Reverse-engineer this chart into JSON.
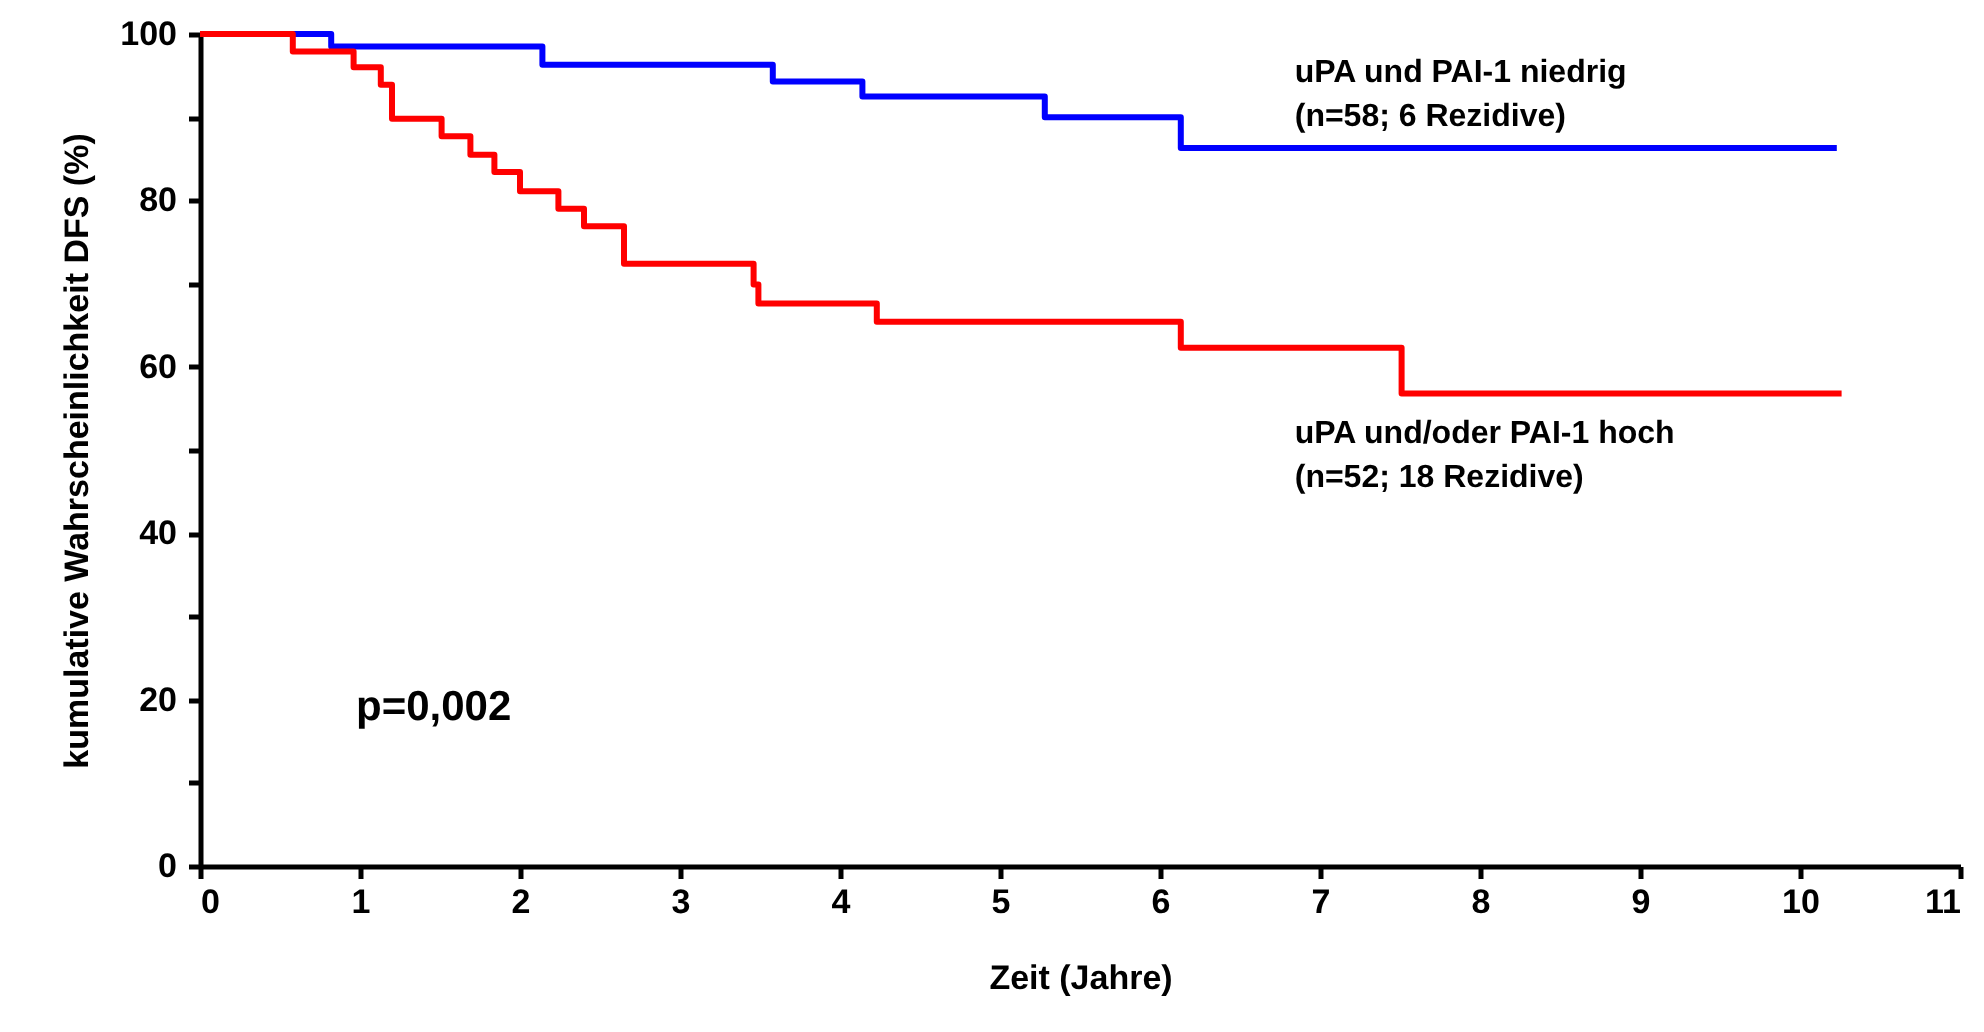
{
  "chart_data": {
    "type": "step",
    "xlabel": "Zeit (Jahre)",
    "ylabel": "kumulative Wahrscheinlichkeit DFS (%)",
    "series": [
      {
        "name": "uPA und PAI-1 niedrig\n(n=58; 6 Rezidive)",
        "color": "#0000ff",
        "x": [
          0,
          0.82,
          2.14,
          3.58,
          4.14,
          5.28,
          6.13,
          10.23
        ],
        "values": [
          100,
          98.5,
          96.3,
          94.3,
          92.5,
          90.0,
          86.3,
          86.3
        ]
      },
      {
        "name": "uPA und/oder PAI-1 hoch\n(n=52; 18 Rezidive)",
        "color": "#ff0000",
        "x": [
          0,
          0.58,
          0.96,
          1.13,
          1.2,
          1.51,
          1.69,
          1.84,
          2.0,
          2.24,
          2.4,
          2.65,
          3.46,
          3.49,
          4.23,
          6.13,
          7.51,
          10.26
        ],
        "values": [
          100,
          97.9,
          96.0,
          93.9,
          89.8,
          87.7,
          85.5,
          83.4,
          81.1,
          79.0,
          76.9,
          72.4,
          69.9,
          67.6,
          65.4,
          62.3,
          56.8,
          56.8
        ]
      }
    ],
    "annotations": [
      "p=0,002"
    ],
    "xlim": [
      0,
      11
    ],
    "xticks": [
      0,
      1,
      2,
      3,
      4,
      5,
      6,
      7,
      8,
      9,
      10,
      11
    ],
    "ylim": [
      0,
      100
    ],
    "yticks": [
      0,
      {
        "value": 10,
        "label": null
      },
      20,
      {
        "value": 30,
        "label": null
      },
      40,
      {
        "value": 50,
        "label": null
      },
      60,
      {
        "value": 70,
        "label": null
      },
      80,
      {
        "value": 90,
        "label": null
      },
      100
    ],
    "grid": false,
    "line_style": "solid"
  }
}
